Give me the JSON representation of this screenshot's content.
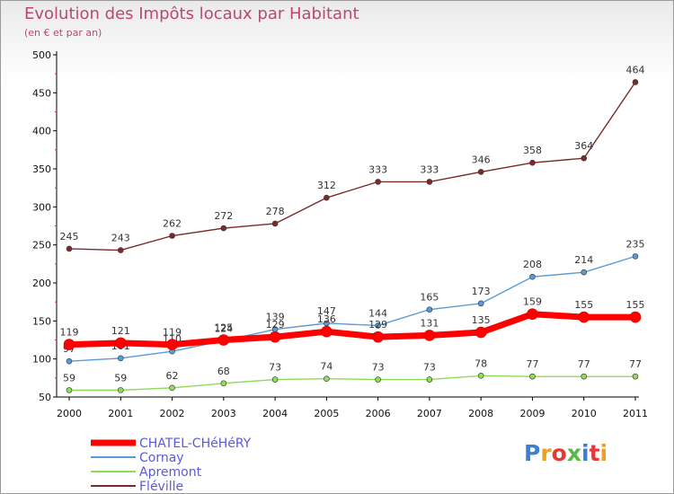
{
  "header": {
    "title": "Evolution des Impôts locaux par Habitant",
    "subtitle": "(en € et par an)"
  },
  "logo": {
    "text": "Proxiti",
    "colors": [
      "#3a7fd6",
      "#f0a020",
      "#e23a3a",
      "#58b848",
      "#3a7fd6",
      "#e23a3a",
      "#f0a020"
    ]
  },
  "chart_data": {
    "type": "line",
    "x": [
      2000,
      2001,
      2002,
      2003,
      2004,
      2005,
      2006,
      2007,
      2008,
      2009,
      2010,
      2011
    ],
    "yticks": [
      50,
      100,
      150,
      200,
      250,
      300,
      350,
      400,
      450,
      500
    ],
    "ylim": [
      50,
      500
    ],
    "grid": false,
    "legend_position": "bottom-left",
    "series": [
      {
        "name": "Fléville",
        "color": "#7a2a2a",
        "values": [
          245,
          243,
          262,
          272,
          278,
          312,
          333,
          333,
          346,
          358,
          364,
          464
        ]
      },
      {
        "name": "Apremont",
        "color": "#8fdc5a",
        "values": [
          59,
          59,
          62,
          68,
          73,
          74,
          73,
          73,
          78,
          77,
          77,
          77
        ]
      },
      {
        "name": "Cornay",
        "color": "#5a9ad6",
        "values": [
          97,
          101,
          110,
          124,
          139,
          147,
          144,
          165,
          173,
          208,
          214,
          235
        ]
      },
      {
        "name": "CHATEL-CHéHéRY",
        "color": "#ff0000",
        "values": [
          119,
          121,
          119,
          125,
          129,
          136,
          129,
          131,
          135,
          159,
          155,
          155
        ]
      }
    ],
    "legend_order": [
      "CHATEL-CHéHéRY",
      "Cornay",
      "Apremont",
      "Fléville"
    ]
  }
}
